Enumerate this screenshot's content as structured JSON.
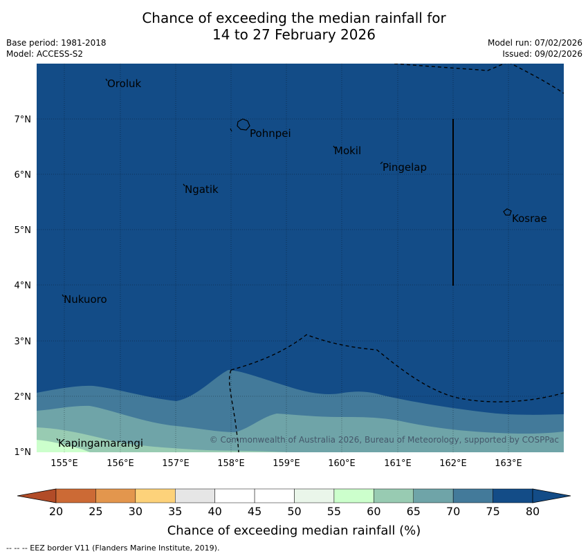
{
  "header": {
    "title_line1": "Chance of exceeding the median rainfall for",
    "title_line2": "14 to 27 February 2026",
    "base_period": "Base period: 1981-2018",
    "model": "Model: ACCESS-S2",
    "model_run": "Model run: 07/02/2026",
    "issued": "Issued: 09/02/2026"
  },
  "map": {
    "ocean_color": "#134c87",
    "lat_labels": [
      "7°N",
      "6°N",
      "5°N",
      "4°N",
      "3°N",
      "2°N",
      "1°N"
    ],
    "lon_labels": [
      "155°E",
      "156°E",
      "157°E",
      "158°E",
      "159°E",
      "160°E",
      "161°E",
      "162°E",
      "163°E"
    ],
    "islands": [
      "Oroluk",
      "Pohnpei",
      "Mokil",
      "Pingelap",
      "Ngatik",
      "Kosrae",
      "Nukuoro",
      "Kapingamarangi"
    ],
    "copyright": "© Commonwealth of Australia 2026, Bureau of Meteorology, supported by COSPPac"
  },
  "legend": {
    "ticks": [
      "20",
      "25",
      "30",
      "35",
      "40",
      "45",
      "50",
      "55",
      "60",
      "65",
      "70",
      "75",
      "80"
    ],
    "colors": [
      "#b24c28",
      "#cc6a35",
      "#e3964d",
      "#fdd27a",
      "#e6e6e6",
      "#ffffff",
      "#ffffff",
      "#eaf6ea",
      "#ccffcc",
      "#98cbb2",
      "#6fa4a8",
      "#437a9a",
      "#134c87"
    ],
    "title": "Chance of exceeding median rainfall (%)"
  },
  "footer": {
    "eez_note": "--  --  -- EEZ border V11 (Flanders Marine Institute, 2019)."
  }
}
